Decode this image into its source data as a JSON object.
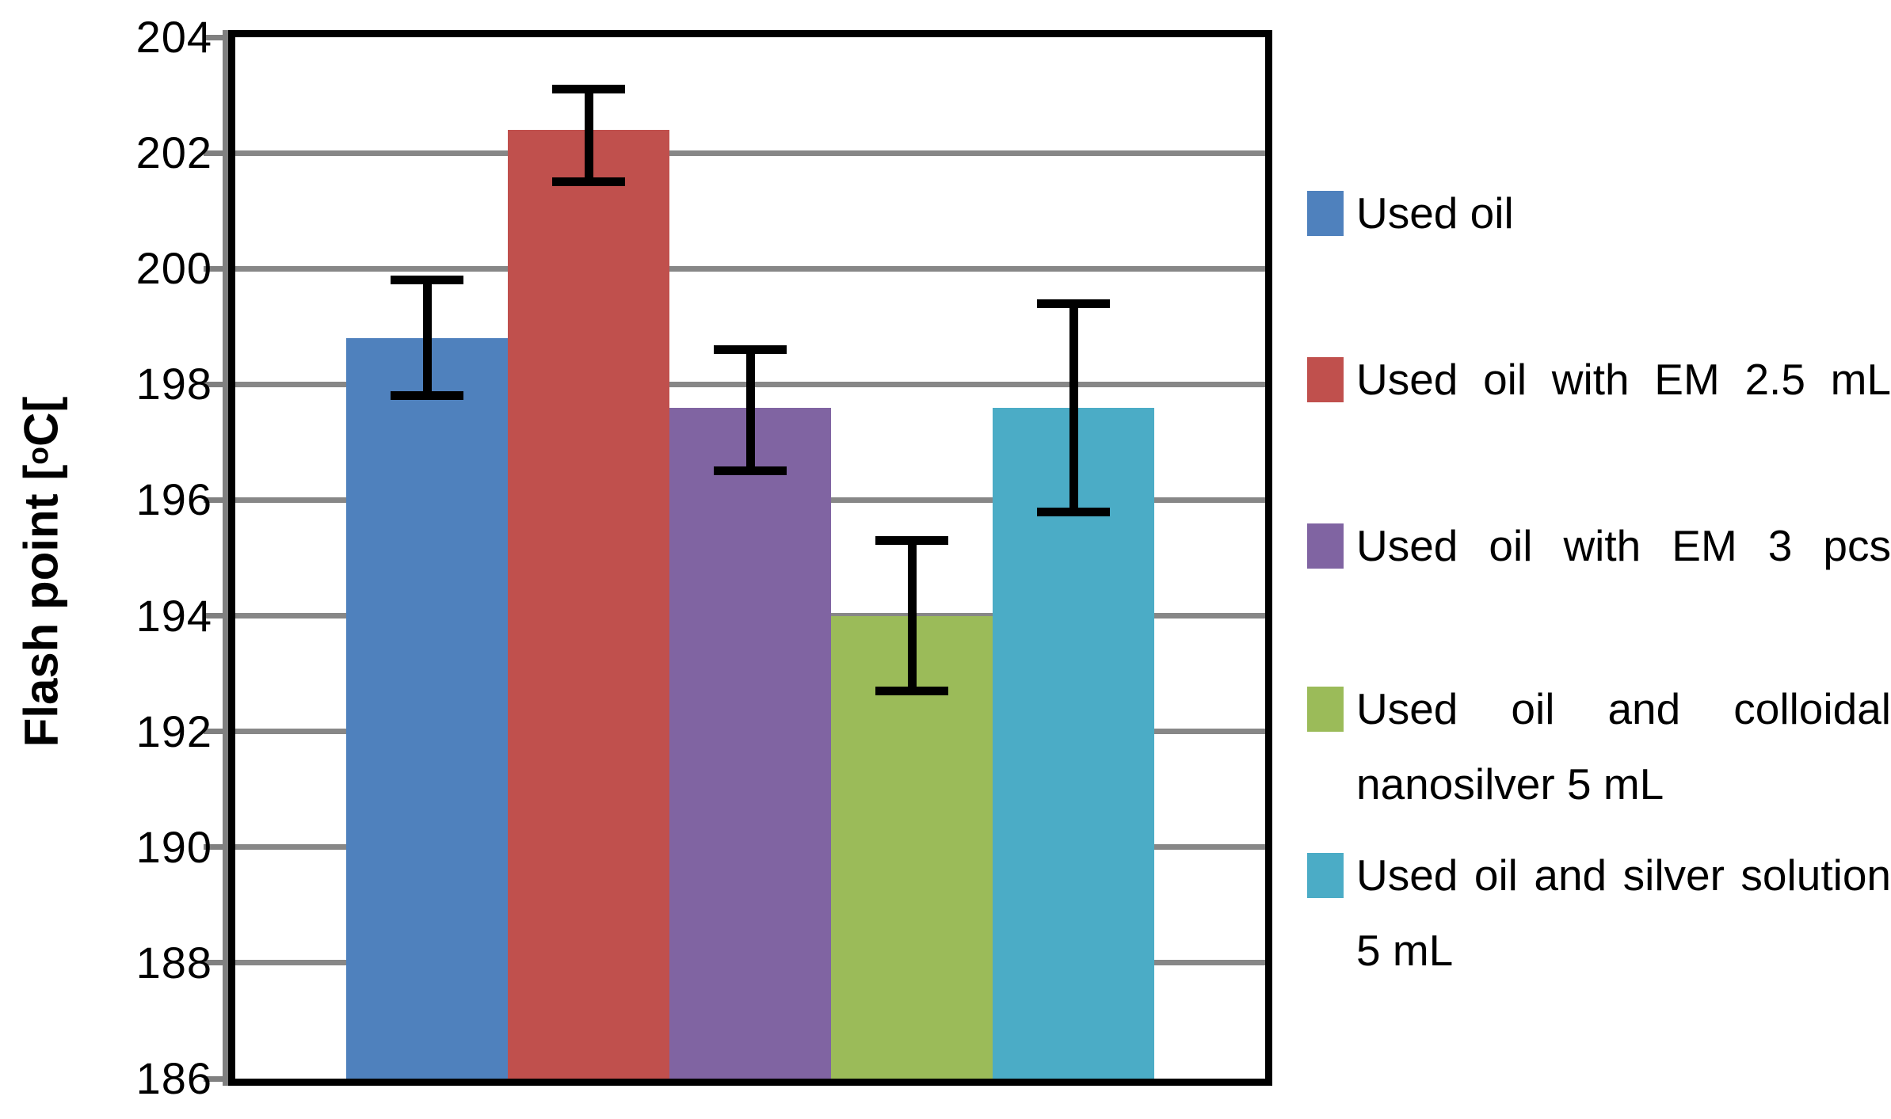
{
  "figure": {
    "background_color": "#FFFFFF"
  },
  "chart_data": {
    "type": "bar",
    "title": "",
    "xlabel": "",
    "ylabel_prefix": "Flash point [",
    "ylabel_sup": "o",
    "ylabel_suffix": "C[",
    "ylim": [
      186,
      204
    ],
    "ytick_step": 2,
    "yticks": [
      186,
      188,
      190,
      192,
      194,
      196,
      198,
      200,
      202,
      204
    ],
    "grid": "horizontal-major",
    "gridline_color": "#878787",
    "axis_color": "#000000",
    "error_bar_color": "#000000",
    "legend_position": "right",
    "categories": [
      ""
    ],
    "series": [
      {
        "name": "Used oil",
        "value": 198.8,
        "error_upper": 199.8,
        "error_lower": 197.8,
        "color": "#4F81BD"
      },
      {
        "name": "Used oil with EM 2.5 mL",
        "value": 202.4,
        "error_upper": 203.1,
        "error_lower": 201.5,
        "color": "#C0504D"
      },
      {
        "name": "Used oil with EM 3 pcs",
        "value": 197.6,
        "error_upper": 198.6,
        "error_lower": 196.5,
        "color": "#8064A2"
      },
      {
        "name": "Used oil and colloidal nanosilver 5 mL",
        "value": 194.0,
        "error_upper": 195.3,
        "error_lower": 192.7,
        "color": "#9BBB59"
      },
      {
        "name": "Used oil and silver solution 5 mL",
        "value": 197.6,
        "error_upper": 199.4,
        "error_lower": 195.8,
        "color": "#4BACC6"
      }
    ]
  }
}
